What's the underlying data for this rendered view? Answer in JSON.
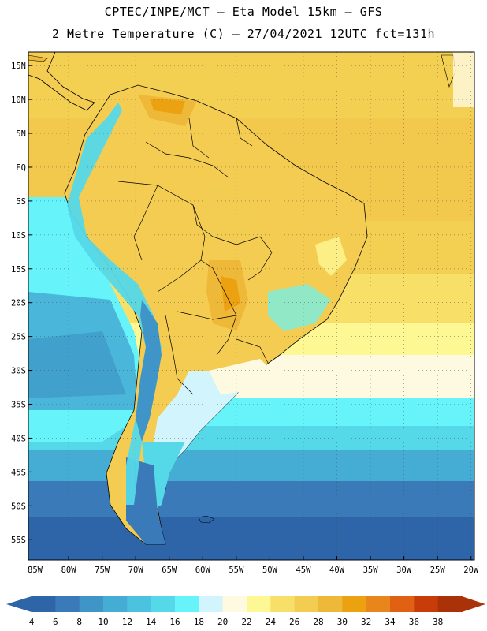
{
  "header": {
    "line1": "CPTEC/INPE/MCT –  Eta Model 15km – GFS",
    "line2": "2 Metre Temperature (C) – 27/04/2021 12UTC fct=131h"
  },
  "map": {
    "lon_labels": [
      "85W",
      "80W",
      "75W",
      "70W",
      "65W",
      "60W",
      "55W",
      "50W",
      "45W",
      "40W",
      "35W",
      "30W",
      "25W",
      "20W"
    ],
    "lat_labels": [
      "15N",
      "10N",
      "5N",
      "EQ",
      "5S",
      "10S",
      "15S",
      "20S",
      "25S",
      "30S",
      "35S",
      "40S",
      "45S",
      "50S",
      "55S"
    ],
    "lon_values": [
      -85,
      -80,
      -75,
      -70,
      -65,
      -60,
      -55,
      -50,
      -45,
      -40,
      -35,
      -30,
      -25,
      -20
    ],
    "lat_values": [
      15,
      10,
      5,
      0,
      -5,
      -10,
      -15,
      -20,
      -25,
      -30,
      -35,
      -40,
      -45,
      -50,
      -55
    ],
    "extent": {
      "lon_min": -86,
      "lon_max": -19.5,
      "lat_min": -58,
      "lat_max": 17
    },
    "grid": "dotted"
  },
  "colorbar": {
    "labels": [
      "4",
      "6",
      "8",
      "10",
      "12",
      "14",
      "16",
      "18",
      "20",
      "22",
      "24",
      "26",
      "28",
      "30",
      "32",
      "34",
      "36",
      "38"
    ],
    "colors": [
      "#2e64a8",
      "#3a7ab8",
      "#3f95c8",
      "#45acd4",
      "#4cc3de",
      "#55d8e8",
      "#66f4fa",
      "#d2f4fc",
      "#fefae2",
      "#fef894",
      "#f8df68",
      "#f2cd52",
      "#eeb838",
      "#eca210",
      "#e8861c",
      "#e06014",
      "#c83c0a",
      "#aa3208"
    ]
  },
  "colors": {
    "ocean_warm": "#f5d255",
    "ocean_tropical": "#f2c94c",
    "land_warm": "#f5cc52",
    "land_hot": "#eeb838",
    "land_hottest": "#eca210",
    "andes": "#55d8e8",
    "cold_ocean": "#2e64a8"
  }
}
